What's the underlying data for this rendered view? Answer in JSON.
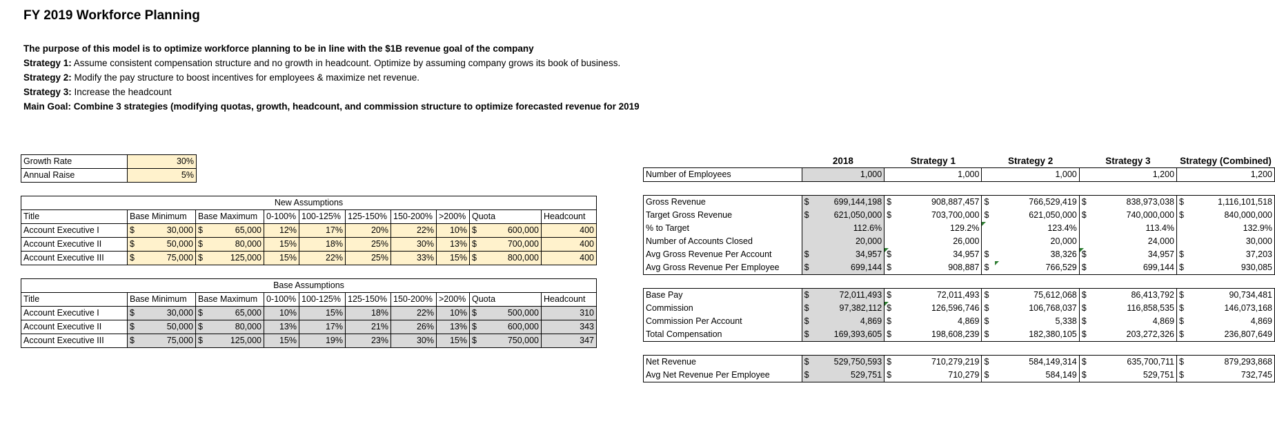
{
  "title": "FY 2019 Workforce Planning",
  "intro": {
    "purpose": "The purpose of this model is to optimize workforce planning to be in line with the $1B revenue goal of the company",
    "strategies": [
      {
        "label": "Strategy 1:",
        "text": " Assume consistent compensation structure and no growth in headcount.  Optimize by assuming company grows its book of business."
      },
      {
        "label": "Strategy 2:",
        "text": " Modify the pay structure to boost incentives for employees & maximize net revenue."
      },
      {
        "label": "Strategy 3:",
        "text": " Increase the headcount"
      }
    ],
    "main_goal": "Main Goal: Combine 3 strategies (modifying quotas, growth, headcount, and commission structure to optimize forecasted revenue for 2019"
  },
  "params": [
    {
      "label": "Growth Rate",
      "value": "30%"
    },
    {
      "label": "Annual Raise",
      "value": "5%"
    }
  ],
  "columns": [
    "Title",
    "Base Minimum",
    "Base Maximum",
    "0-100%",
    "100-125%",
    "125-150%",
    "150-200%",
    ">200%",
    "Quota",
    "Headcount"
  ],
  "currency": "$",
  "new_assumptions": {
    "title": "New Assumptions",
    "rows": [
      {
        "title": "Account Executive I",
        "base_min": "30,000",
        "base_max": "65,000",
        "t1": "12%",
        "t2": "17%",
        "t3": "20%",
        "t4": "22%",
        "t5": "10%",
        "quota": "600,000",
        "headcount": "400"
      },
      {
        "title": "Account Executive II",
        "base_min": "50,000",
        "base_max": "80,000",
        "t1": "15%",
        "t2": "18%",
        "t3": "25%",
        "t4": "30%",
        "t5": "13%",
        "quota": "700,000",
        "headcount": "400"
      },
      {
        "title": "Account Executive III",
        "base_min": "75,000",
        "base_max": "125,000",
        "t1": "15%",
        "t2": "22%",
        "t3": "25%",
        "t4": "33%",
        "t5": "15%",
        "quota": "800,000",
        "headcount": "400"
      }
    ]
  },
  "base_assumptions": {
    "title": "Base Assumptions",
    "rows": [
      {
        "title": "Account Executive I",
        "base_min": "30,000",
        "base_max": "65,000",
        "t1": "10%",
        "t2": "15%",
        "t3": "18%",
        "t4": "22%",
        "t5": "10%",
        "quota": "500,000",
        "headcount": "310"
      },
      {
        "title": "Account Executive II",
        "base_min": "50,000",
        "base_max": "80,000",
        "t1": "13%",
        "t2": "17%",
        "t3": "21%",
        "t4": "26%",
        "t5": "13%",
        "quota": "600,000",
        "headcount": "343"
      },
      {
        "title": "Account Executive III",
        "base_min": "75,000",
        "base_max": "125,000",
        "t1": "15%",
        "t2": "19%",
        "t3": "23%",
        "t4": "30%",
        "t5": "15%",
        "quota": "750,000",
        "headcount": "347"
      }
    ]
  },
  "summary": {
    "headers": [
      "2018",
      "Strategy 1",
      "Strategy 2",
      "Strategy 3",
      "Strategy (Combined)"
    ],
    "employees": {
      "label": "Number of Employees",
      "values": [
        "1,000",
        "1,000",
        "1,000",
        "1,200",
        "1,200"
      ]
    },
    "revenue_rows": [
      {
        "label": "Gross Revenue",
        "values": [
          "699,144,198",
          "908,887,457",
          "766,529,419",
          "838,973,038",
          "1,116,101,518"
        ]
      },
      {
        "label": "Target Gross Revenue",
        "values": [
          "621,050,000",
          "703,700,000",
          "621,050,000",
          "740,000,000",
          "840,000,000"
        ]
      },
      {
        "label": "% to Target",
        "values": [
          "112.6%",
          "129.2%",
          "123.4%",
          "113.4%",
          "132.9%"
        ]
      },
      {
        "label": "Number of Accounts Closed",
        "values": [
          "20,000",
          "26,000",
          "20,000",
          "24,000",
          "30,000"
        ]
      },
      {
        "label": "Avg Gross Revenue Per Account",
        "values": [
          "34,957",
          "34,957",
          "38,326",
          "34,957",
          "37,203"
        ]
      },
      {
        "label": "Avg Gross Revenue Per Employee",
        "values": [
          "699,144",
          "908,887",
          "766,529",
          "699,144",
          "930,085"
        ]
      }
    ],
    "comp_rows": [
      {
        "label": "Base Pay",
        "values": [
          "72,011,493",
          "72,011,493",
          "75,612,068",
          "86,413,792",
          "90,734,481"
        ]
      },
      {
        "label": "Commission",
        "values": [
          "97,382,112",
          "126,596,746",
          "106,768,037",
          "116,858,535",
          "146,073,168"
        ]
      },
      {
        "label": "Commission Per Account",
        "values": [
          "4,869",
          "4,869",
          "5,338",
          "4,869",
          "4,869"
        ]
      },
      {
        "label": "Total Compensation",
        "values": [
          "169,393,605",
          "198,608,239",
          "182,380,105",
          "203,272,326",
          "236,807,649"
        ]
      }
    ],
    "net_rows": [
      {
        "label": "Net Revenue",
        "values": [
          "529,750,593",
          "710,279,219",
          "584,149,314",
          "635,700,711",
          "879,293,868"
        ]
      },
      {
        "label": "Avg Net Revenue Per Employee",
        "values": [
          "529,751",
          "710,279",
          "584,149",
          "529,751",
          "732,745"
        ]
      }
    ]
  },
  "colors": {
    "input_fill": "#fff2cc",
    "calc_fill": "#d9d9d9",
    "note_triangle": "#2e7d32"
  }
}
